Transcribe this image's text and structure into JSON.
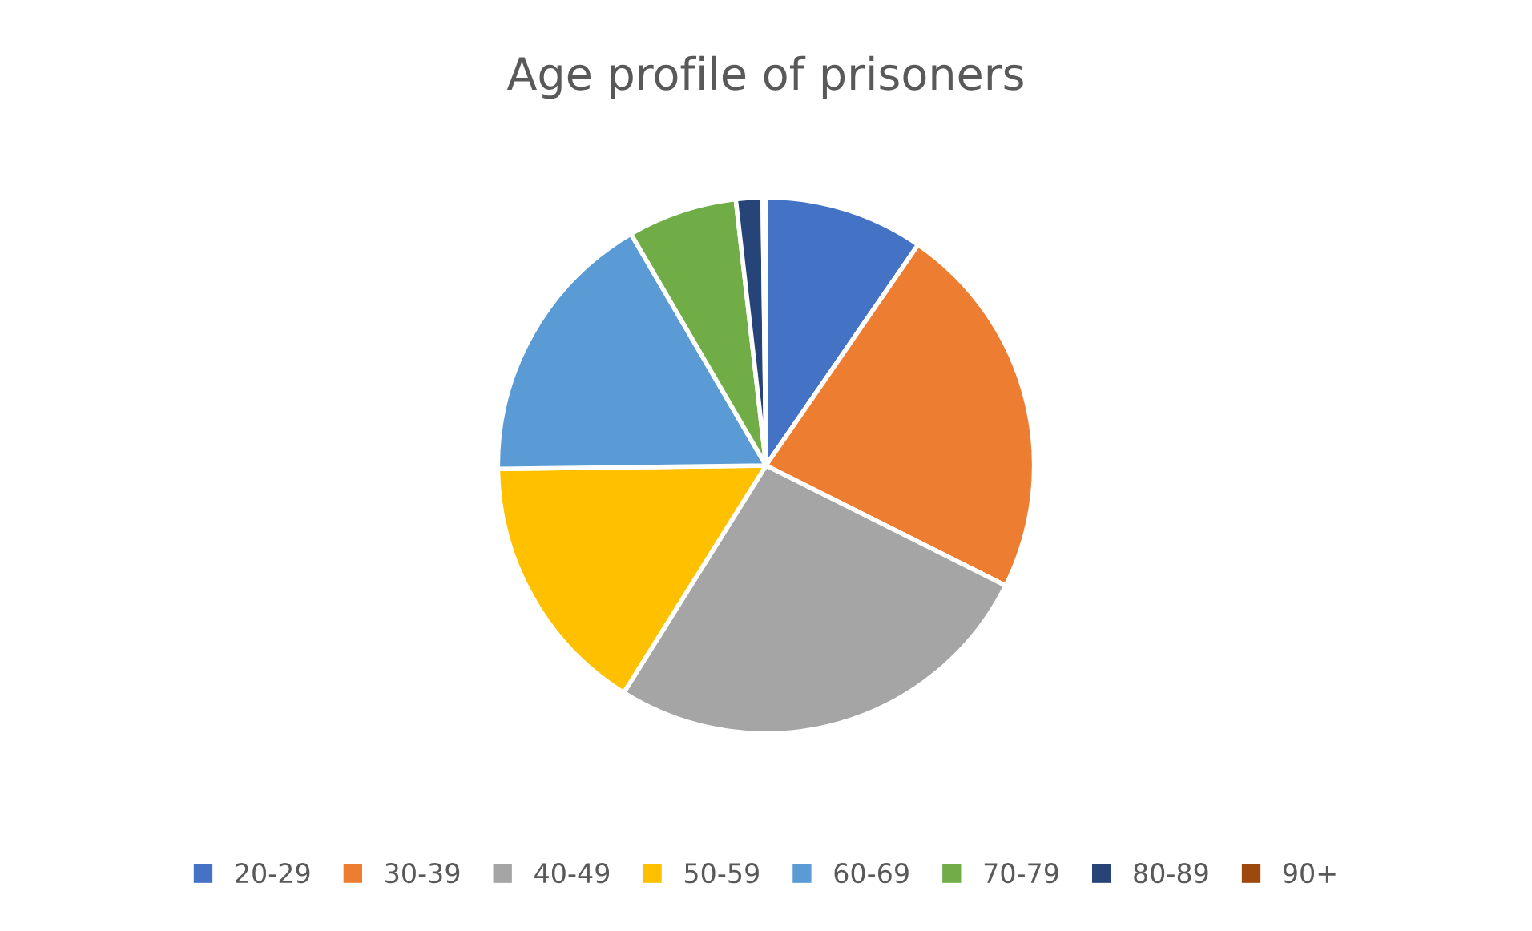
{
  "chart_data": {
    "type": "pie",
    "title": "Age profile of prisoners",
    "categories": [
      "20-29",
      "30-39",
      "40-49",
      "50-59",
      "60-69",
      "70-79",
      "80-89",
      "90+"
    ],
    "values": [
      9.6,
      22.8,
      26.5,
      15.9,
      16.8,
      6.6,
      1.6,
      0.2
    ],
    "colors": [
      "#4472c4",
      "#ed7d31",
      "#a5a5a5",
      "#ffc000",
      "#5b9bd5",
      "#70ad47",
      "#264478",
      "#9e480e"
    ],
    "legend": "bottom"
  }
}
